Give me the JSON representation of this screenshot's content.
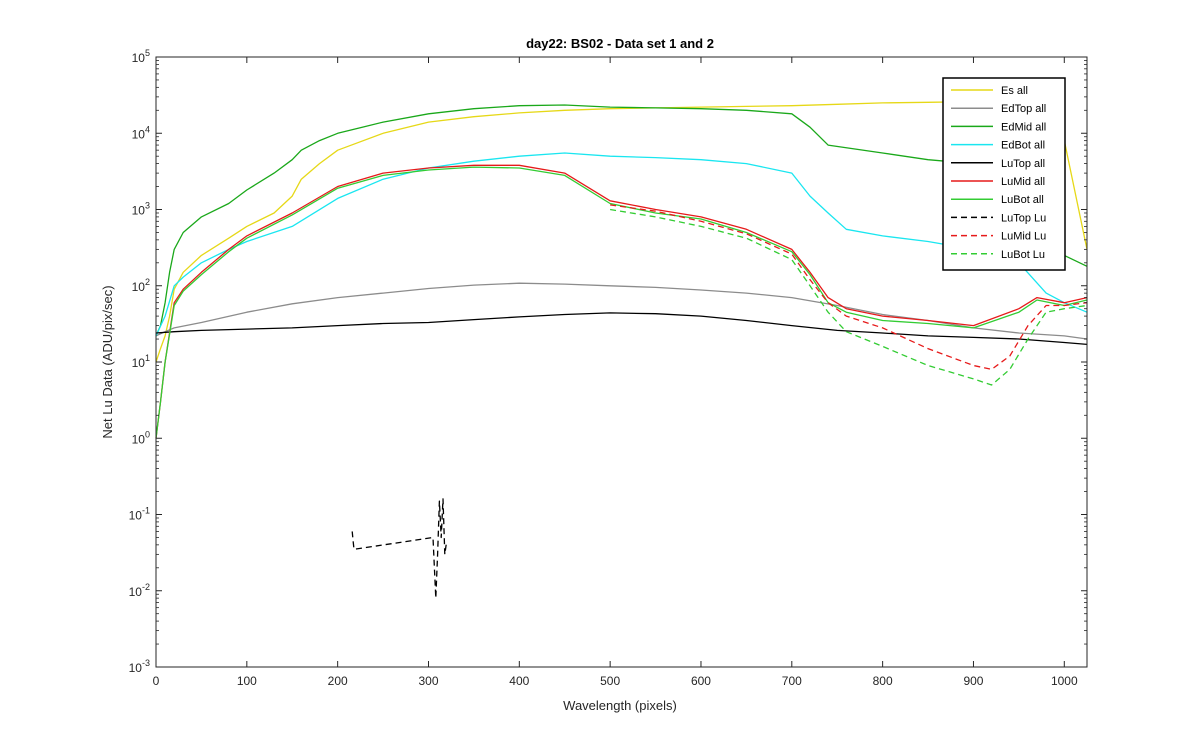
{
  "chart_data": {
    "type": "line",
    "title": "day22: BS02 - Data set 1 and 2",
    "xlabel": "Wavelength (pixels)",
    "ylabel": "Net Lu Data (ADU/pix/sec)",
    "xlim": [
      0,
      1025
    ],
    "ylim": [
      0.001,
      100000
    ],
    "yscale": "log",
    "x_ticks": [
      "0",
      "100",
      "200",
      "300",
      "400",
      "500",
      "600",
      "700",
      "800",
      "900",
      "1000"
    ],
    "x_tick_values": [
      0,
      100,
      200,
      300,
      400,
      500,
      600,
      700,
      800,
      900,
      1000
    ],
    "y_tick_exponents": [
      "-3",
      "-2",
      "-1",
      "0",
      "1",
      "2",
      "3",
      "4",
      "5"
    ],
    "y_tick_base": "10",
    "grid": false,
    "legend_position": "top-right",
    "series": [
      {
        "name": "Es  all",
        "color": "#e6d817",
        "style": "solid",
        "x": [
          0,
          5,
          10,
          15,
          20,
          30,
          50,
          80,
          100,
          130,
          150,
          160,
          180,
          200,
          250,
          300,
          350,
          400,
          450,
          500,
          550,
          600,
          650,
          700,
          750,
          800,
          850,
          900,
          950,
          980,
          1000,
          1025
        ],
        "y": [
          10,
          15,
          22,
          40,
          90,
          150,
          250,
          420,
          600,
          900,
          1500,
          2500,
          4000,
          6000,
          10000,
          14000,
          16500,
          18500,
          20000,
          21000,
          21500,
          22000,
          22500,
          23000,
          24000,
          25000,
          25500,
          26000,
          26000,
          25000,
          8000,
          300
        ]
      },
      {
        "name": "EdTop  all",
        "color": "#8c8c8c",
        "style": "solid",
        "x": [
          0,
          10,
          20,
          50,
          100,
          150,
          200,
          250,
          300,
          350,
          400,
          450,
          500,
          550,
          600,
          650,
          700,
          750,
          800,
          850,
          900,
          950,
          1000,
          1025
        ],
        "y": [
          22,
          25,
          28,
          33,
          45,
          58,
          70,
          80,
          92,
          102,
          108,
          105,
          100,
          95,
          88,
          80,
          70,
          55,
          42,
          35,
          28,
          24,
          22,
          20
        ]
      },
      {
        "name": "EdMid  all",
        "color": "#1aa81a",
        "style": "solid",
        "x": [
          0,
          5,
          10,
          15,
          20,
          30,
          50,
          80,
          100,
          130,
          150,
          160,
          180,
          200,
          250,
          300,
          350,
          400,
          450,
          500,
          550,
          600,
          650,
          700,
          720,
          740,
          800,
          850,
          900,
          950,
          1000,
          1025
        ],
        "y": [
          22,
          30,
          60,
          150,
          300,
          500,
          800,
          1200,
          1800,
          3000,
          4500,
          6000,
          8000,
          10000,
          14000,
          18000,
          21000,
          23000,
          23500,
          22000,
          21500,
          21000,
          20000,
          18000,
          12000,
          7000,
          5500,
          4500,
          4000,
          2000,
          250,
          180
        ]
      },
      {
        "name": "EdBot  all",
        "color": "#1ae6f0",
        "style": "solid",
        "x": [
          0,
          10,
          20,
          30,
          50,
          80,
          100,
          150,
          200,
          250,
          300,
          350,
          400,
          450,
          500,
          550,
          600,
          650,
          700,
          720,
          740,
          760,
          800,
          850,
          900,
          950,
          980,
          1000,
          1025
        ],
        "y": [
          22,
          40,
          100,
          130,
          200,
          300,
          380,
          600,
          1400,
          2500,
          3500,
          4300,
          5000,
          5500,
          5000,
          4800,
          4500,
          4000,
          3000,
          1500,
          900,
          550,
          450,
          380,
          300,
          200,
          80,
          60,
          45
        ]
      },
      {
        "name": "LuTop  all",
        "color": "#000000",
        "style": "solid",
        "x": [
          0,
          20,
          50,
          100,
          150,
          200,
          250,
          300,
          350,
          400,
          450,
          500,
          550,
          600,
          650,
          700,
          750,
          800,
          850,
          900,
          950,
          1000,
          1025
        ],
        "y": [
          24,
          25,
          26,
          27,
          28,
          30,
          32,
          33,
          36,
          39,
          42,
          44,
          43,
          40,
          35,
          30,
          26,
          24,
          22,
          21,
          20,
          18,
          17
        ]
      },
      {
        "name": "LuMid  all",
        "color": "#e61a1a",
        "style": "solid",
        "x": [
          0,
          5,
          10,
          20,
          30,
          50,
          80,
          100,
          150,
          200,
          250,
          300,
          350,
          400,
          450,
          500,
          550,
          600,
          650,
          700,
          720,
          740,
          760,
          800,
          850,
          900,
          950,
          970,
          1000,
          1025
        ],
        "y": [
          1,
          3,
          10,
          60,
          90,
          150,
          300,
          450,
          900,
          2000,
          3000,
          3500,
          3800,
          3800,
          3000,
          1300,
          1000,
          800,
          550,
          300,
          150,
          70,
          50,
          40,
          35,
          30,
          50,
          70,
          60,
          70
        ]
      },
      {
        "name": "LuBot  all",
        "color": "#33cc33",
        "style": "solid",
        "x": [
          0,
          5,
          10,
          20,
          30,
          50,
          80,
          100,
          150,
          200,
          250,
          300,
          350,
          400,
          450,
          500,
          550,
          600,
          650,
          700,
          720,
          740,
          760,
          800,
          850,
          900,
          950,
          970,
          1000,
          1025
        ],
        "y": [
          1,
          3,
          10,
          55,
          85,
          140,
          280,
          420,
          850,
          1900,
          2800,
          3300,
          3600,
          3500,
          2800,
          1200,
          900,
          750,
          500,
          280,
          140,
          60,
          45,
          35,
          32,
          28,
          45,
          65,
          55,
          65
        ]
      },
      {
        "name": "LuTop  Lu",
        "color": "#000000",
        "style": "dashed",
        "x": [
          216,
          217,
          218,
          305,
          308,
          310,
          312,
          314,
          316,
          318,
          320
        ],
        "y": [
          0.06,
          0.045,
          0.035,
          0.05,
          0.008,
          0.03,
          0.15,
          0.05,
          0.16,
          0.03,
          0.045
        ]
      },
      {
        "name": "LuMid  Lu",
        "color": "#e61a1a",
        "style": "dashed",
        "x": [
          500,
          550,
          600,
          650,
          700,
          720,
          740,
          760,
          800,
          850,
          900,
          920,
          940,
          960,
          980,
          1000,
          1025
        ],
        "y": [
          1150,
          950,
          700,
          480,
          260,
          120,
          60,
          40,
          28,
          15,
          9,
          8,
          12,
          30,
          55,
          55,
          60
        ]
      },
      {
        "name": "LuBot  Lu",
        "color": "#33cc33",
        "style": "dashed",
        "x": [
          500,
          550,
          600,
          650,
          700,
          720,
          740,
          760,
          800,
          850,
          900,
          920,
          940,
          960,
          980,
          1000,
          1025
        ],
        "y": [
          1000,
          800,
          600,
          420,
          220,
          100,
          45,
          25,
          16,
          9,
          6,
          5,
          8,
          20,
          45,
          50,
          55
        ]
      }
    ]
  }
}
